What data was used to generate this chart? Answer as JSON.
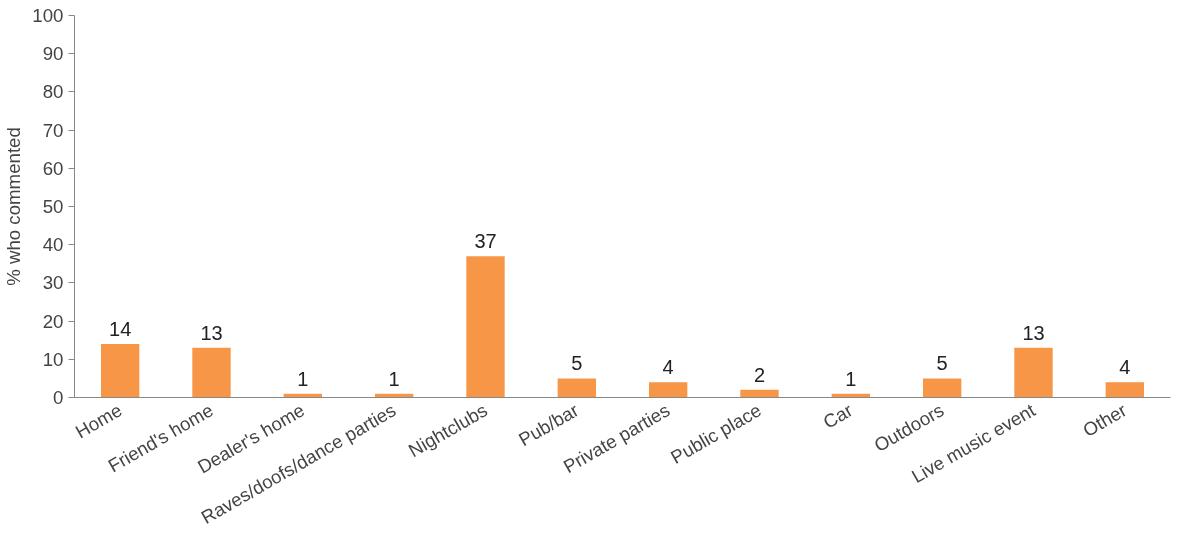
{
  "chart_data": {
    "type": "bar",
    "ylabel": "% who commented",
    "categories": [
      "Home",
      "Friend's home",
      "Dealer's home",
      "Raves/doofs/dance parties",
      "Nightclubs",
      "Pub/bar",
      "Private parties",
      "Public place",
      "Car",
      "Outdoors",
      "Live music event",
      "Other"
    ],
    "values": [
      14,
      13,
      1,
      1,
      37,
      5,
      4,
      2,
      1,
      5,
      13,
      4
    ],
    "color": "#f79646",
    "ylim": [
      0,
      100
    ],
    "yticks": [
      0,
      10,
      20,
      30,
      40,
      50,
      60,
      70,
      80,
      90,
      100
    ],
    "grid": false,
    "data_labels": true
  }
}
